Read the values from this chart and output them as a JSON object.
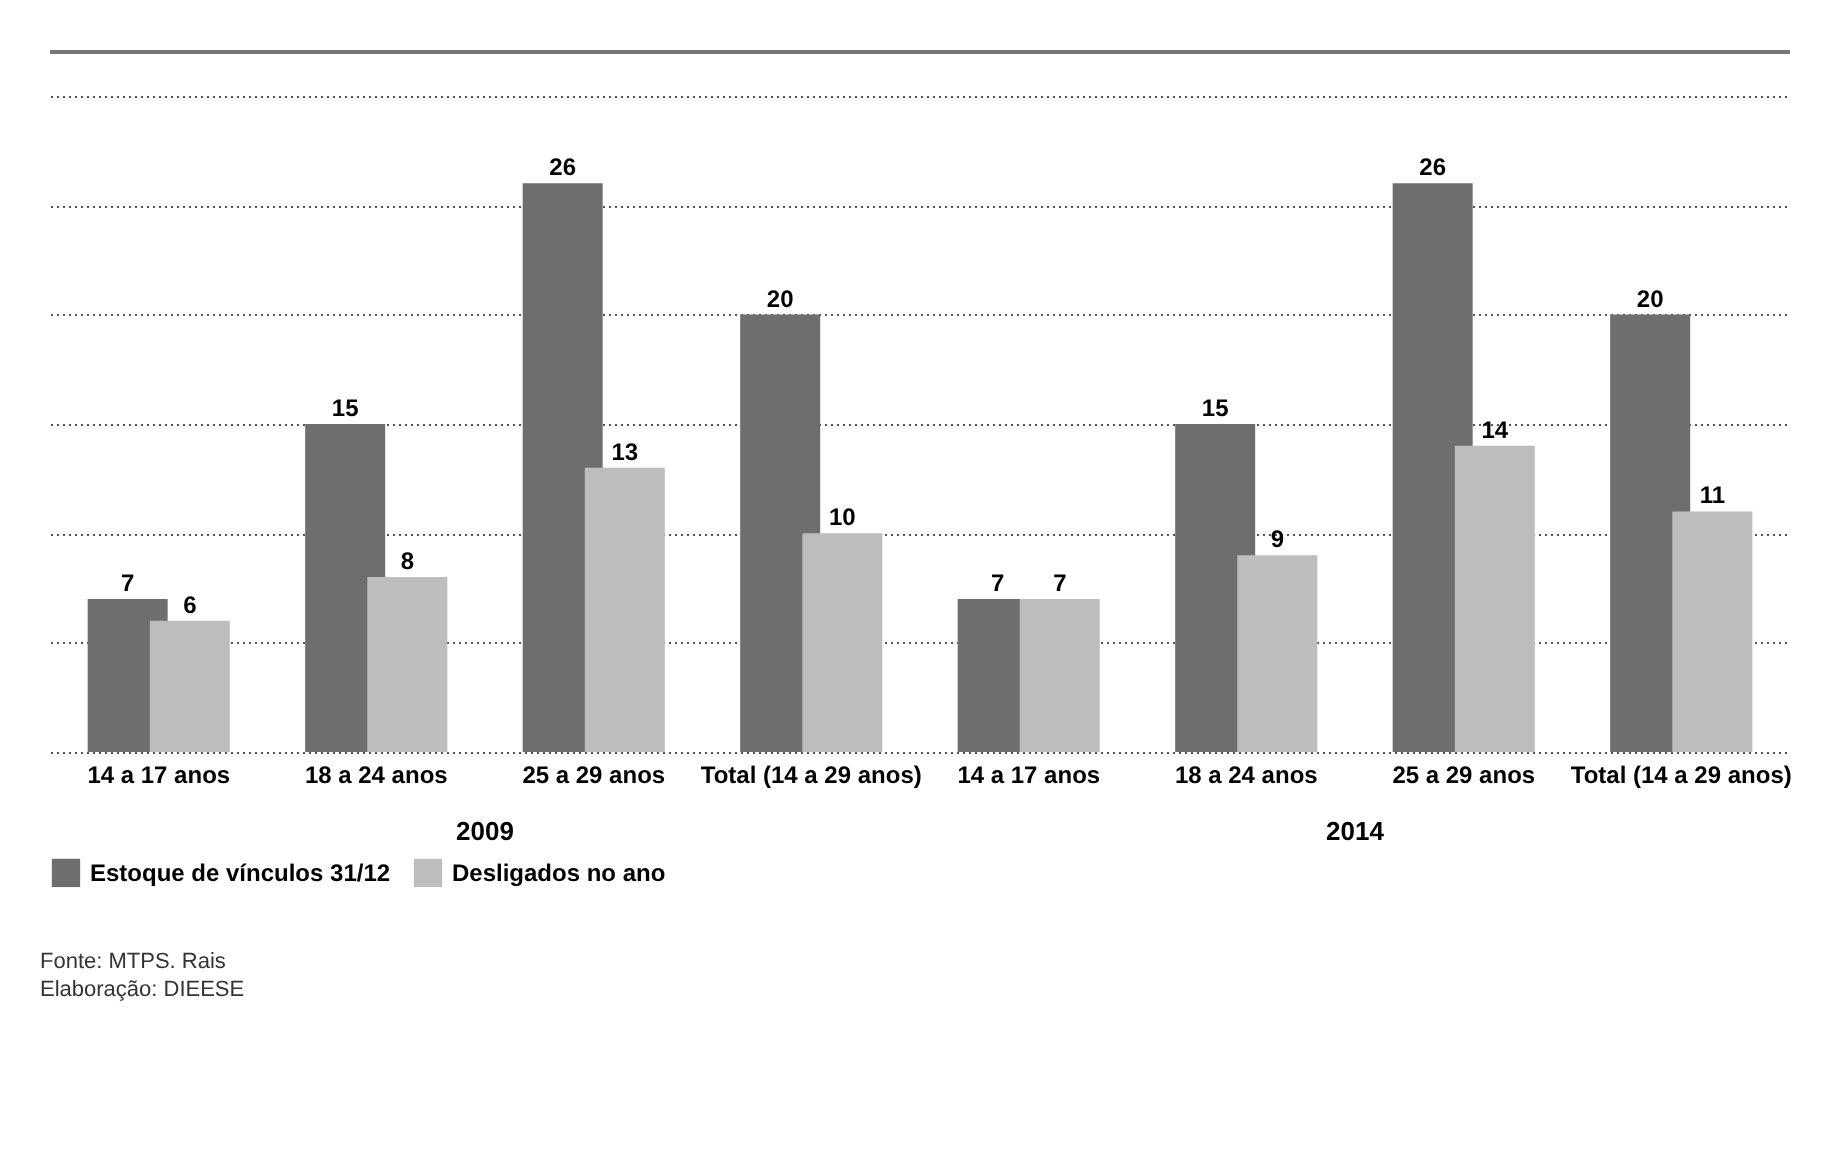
{
  "chart_data": {
    "type": "bar",
    "categories": [
      "14 a 17 anos",
      "18 a 24 anos",
      "25 a 29 anos",
      "Total (14 a 29 anos)",
      "14 a 17 anos",
      "18 a 24 anos",
      "25 a 29 anos",
      "Total (14 a 29 anos)"
    ],
    "series": [
      {
        "name": "Estoque de vínculos 31/12",
        "color": "#6e6e6e",
        "values": [
          7,
          15,
          26,
          20,
          7,
          15,
          26,
          20
        ]
      },
      {
        "name": "Desligados no ano",
        "color": "#bdbdbd",
        "values": [
          6,
          8,
          13,
          10,
          7,
          9,
          14,
          11
        ]
      }
    ],
    "ylim": [
      0,
      32
    ],
    "yticks": [
      {
        "value": 0,
        "label": null
      },
      {
        "value": 5,
        "label": null
      },
      {
        "value": 10,
        "label": null
      },
      {
        "value": 15,
        "label": null
      },
      {
        "value": 20,
        "label": null
      },
      {
        "value": 25,
        "label": null
      },
      {
        "value": 30,
        "label": null
      }
    ],
    "tick_labels": "x",
    "grid": "y",
    "legend": "bottom",
    "data_labels": true,
    "annotations": [
      "2009",
      "2014",
      "Fonte: MTPS. Rais",
      "Elaboração: DIEESE"
    ]
  }
}
